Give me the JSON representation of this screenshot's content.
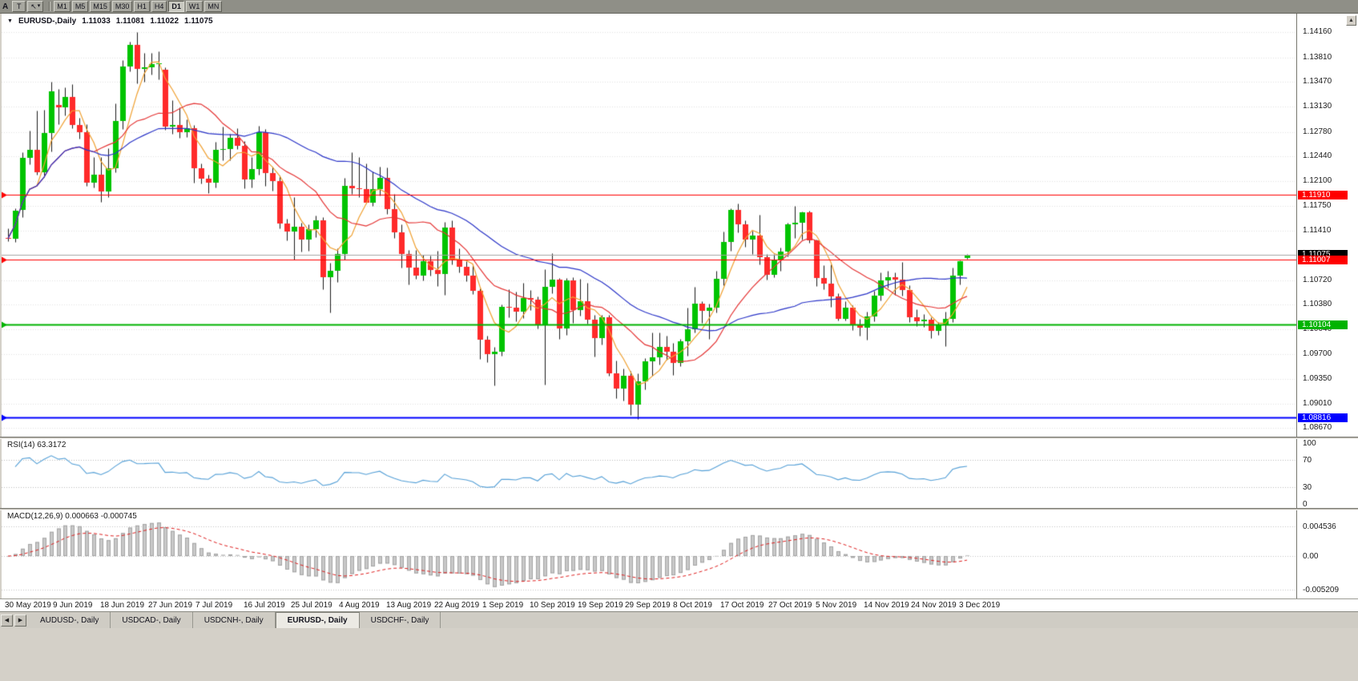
{
  "toolbar": {
    "left_label": "A",
    "t_button": "T",
    "timeframes": [
      {
        "label": "M1",
        "active": false
      },
      {
        "label": "M5",
        "active": false
      },
      {
        "label": "M15",
        "active": false
      },
      {
        "label": "M30",
        "active": false
      },
      {
        "label": "H1",
        "active": false
      },
      {
        "label": "H4",
        "active": false
      },
      {
        "label": "D1",
        "active": true
      },
      {
        "label": "W1",
        "active": false
      },
      {
        "label": "MN",
        "active": false
      }
    ]
  },
  "chart": {
    "header": {
      "collapse_icon": "▼",
      "symbol_title": "EURUSD-,Daily",
      "open": "1.11033",
      "high": "1.11081",
      "low": "1.11022",
      "close": "1.11075"
    },
    "price_axis": {
      "labels": [
        "1.14160",
        "1.13810",
        "1.13470",
        "1.13130",
        "1.12780",
        "1.12440",
        "1.12100",
        "1.11750",
        "1.11410",
        "1.10720",
        "1.10380",
        "1.10040",
        "1.09700",
        "1.09350",
        "1.09010",
        "1.08670"
      ]
    },
    "current_price": {
      "value": 1.11075,
      "label": "1.11075",
      "line_color": "#A6A6A6",
      "badge_bg": "#000000"
    },
    "levels": [
      {
        "price": 1.1191,
        "label": "1.11910",
        "color": "#FF0000",
        "width": 1
      },
      {
        "price": 1.11007,
        "label": "1.11007",
        "color": "#FF0000",
        "width": 1
      },
      {
        "price": 1.10104,
        "label": "1.10104",
        "color": "#00B300",
        "width": 2
      },
      {
        "price": 1.08816,
        "label": "1.08816",
        "color": "#0000FF",
        "width": 2
      }
    ],
    "date_axis": [
      "30 May 2019",
      "9 Jun 2019",
      "18 Jun 2019",
      "27 Jun 2019",
      "7 Jul 2019",
      "16 Jul 2019",
      "25 Jul 2019",
      "4 Aug 2019",
      "13 Aug 2019",
      "22 Aug 2019",
      "1 Sep 2019",
      "10 Sep 2019",
      "19 Sep 2019",
      "29 Sep 2019",
      "8 Oct 2019",
      "17 Oct 2019",
      "27 Oct 2019",
      "5 Nov 2019",
      "14 Nov 2019",
      "24 Nov 2019",
      "3 Dec 2019"
    ]
  },
  "rsi": {
    "label": "RSI(14) 63.3172",
    "axis_labels": [
      "100",
      "70",
      "30",
      "0"
    ],
    "levels": [
      70,
      30
    ],
    "color": "#55A0D7"
  },
  "macd": {
    "label": "MACD(12,26,9) 0.000663 -0.000745",
    "axis_labels": [
      "0.004536",
      "0.00",
      "-0.005209"
    ],
    "grid_values": [
      0.004536,
      0,
      -0.005209
    ],
    "hist_color": "#C8C8C8",
    "hist_outline": "#A4A4A4",
    "signal_color": "#E02020"
  },
  "tabs": {
    "items": [
      {
        "label": "AUDUSD-, Daily",
        "active": false
      },
      {
        "label": "USDCAD-, Daily",
        "active": false
      },
      {
        "label": "USDCNH-, Daily",
        "active": false
      },
      {
        "label": "EURUSD-, Daily",
        "active": true
      },
      {
        "label": "USDCHF-, Daily",
        "active": false
      }
    ]
  },
  "chart_data": {
    "type": "candlestick",
    "symbol": "EURUSD",
    "timeframe": "Daily",
    "last_ohlc": {
      "open": 1.11033,
      "high": 1.11081,
      "low": 1.11022,
      "close": 1.11075
    },
    "scale": {
      "price_max": 1.1442,
      "price_min": 1.0855
    },
    "up_color": "#00C400",
    "down_color": "#FF2A2A",
    "wick_color": "#1A1A1A",
    "moving_averages": [
      {
        "period": 5,
        "color": "#F0A030"
      },
      {
        "period": 13,
        "color": "#E53535"
      },
      {
        "period": 34,
        "color": "#2B35C8"
      }
    ],
    "rsi_period": 14,
    "macd_params": [
      12,
      26,
      9
    ],
    "candles": [
      [
        1.1131,
        1.1144,
        1.1126,
        1.113
      ],
      [
        1.113,
        1.1172,
        1.11255,
        1.1168
      ],
      [
        1.117,
        1.125,
        1.116,
        1.1242
      ],
      [
        1.1242,
        1.128,
        1.1233,
        1.1253
      ],
      [
        1.1253,
        1.1307,
        1.1219,
        1.1222
      ],
      [
        1.1222,
        1.1309,
        1.1215,
        1.1276
      ],
      [
        1.1276,
        1.1348,
        1.1251,
        1.1334
      ],
      [
        1.1315,
        1.1338,
        1.1289,
        1.1312
      ],
      [
        1.1312,
        1.134,
        1.1301,
        1.1326
      ],
      [
        1.1326,
        1.1344,
        1.1283,
        1.1288
      ],
      [
        1.1288,
        1.1297,
        1.1269,
        1.1277
      ],
      [
        1.1277,
        1.1289,
        1.1203,
        1.1207
      ],
      [
        1.1207,
        1.1243,
        1.1201,
        1.1218
      ],
      [
        1.1218,
        1.1243,
        1.1181,
        1.1195
      ],
      [
        1.1195,
        1.1255,
        1.1187,
        1.1227
      ],
      [
        1.1227,
        1.1317,
        1.1222,
        1.1293
      ],
      [
        1.1293,
        1.1378,
        1.1282,
        1.1369
      ],
      [
        1.1369,
        1.1403,
        1.1362,
        1.1399
      ],
      [
        1.1399,
        1.1416,
        1.1345,
        1.1365
      ],
      [
        1.1365,
        1.1387,
        1.1348,
        1.1367
      ],
      [
        1.1367,
        1.1388,
        1.1357,
        1.1372
      ],
      [
        1.1372,
        1.139,
        1.1351,
        1.1373
      ],
      [
        1.1364,
        1.1368,
        1.1281,
        1.1285
      ],
      [
        1.1285,
        1.1322,
        1.1275,
        1.1288
      ],
      [
        1.1288,
        1.1312,
        1.127,
        1.1278
      ],
      [
        1.1278,
        1.1295,
        1.1271,
        1.1283
      ],
      [
        1.1283,
        1.1287,
        1.1207,
        1.1227
      ],
      [
        1.1227,
        1.1234,
        1.1206,
        1.1213
      ],
      [
        1.1213,
        1.1218,
        1.1193,
        1.1207
      ],
      [
        1.1207,
        1.1264,
        1.1201,
        1.1253
      ],
      [
        1.1253,
        1.1285,
        1.1239,
        1.1254
      ],
      [
        1.1254,
        1.1275,
        1.1239,
        1.127
      ],
      [
        1.127,
        1.1283,
        1.1254,
        1.1259
      ],
      [
        1.1259,
        1.1265,
        1.12,
        1.1212
      ],
      [
        1.1212,
        1.1243,
        1.1201,
        1.1226
      ],
      [
        1.1226,
        1.1286,
        1.1219,
        1.1277
      ],
      [
        1.1277,
        1.1282,
        1.1203,
        1.1221
      ],
      [
        1.1221,
        1.123,
        1.1196,
        1.121
      ],
      [
        1.121,
        1.1217,
        1.1144,
        1.1151
      ],
      [
        1.1151,
        1.1157,
        1.1127,
        1.114
      ],
      [
        1.114,
        1.1187,
        1.1101,
        1.1146
      ],
      [
        1.1146,
        1.1152,
        1.1112,
        1.1128
      ],
      [
        1.1128,
        1.115,
        1.1113,
        1.1143
      ],
      [
        1.1143,
        1.1162,
        1.1132,
        1.1155
      ],
      [
        1.1155,
        1.116,
        1.106,
        1.1076
      ],
      [
        1.1076,
        1.1096,
        1.1027,
        1.1085
      ],
      [
        1.1085,
        1.1116,
        1.107,
        1.1108
      ],
      [
        1.1108,
        1.1214,
        1.1101,
        1.1203
      ],
      [
        1.1203,
        1.125,
        1.1192,
        1.12
      ],
      [
        1.12,
        1.1243,
        1.1187,
        1.1199
      ],
      [
        1.1199,
        1.1234,
        1.1179,
        1.118
      ],
      [
        1.118,
        1.1223,
        1.1175,
        1.1199
      ],
      [
        1.1199,
        1.123,
        1.119,
        1.1214
      ],
      [
        1.1214,
        1.1229,
        1.1164,
        1.1171
      ],
      [
        1.1171,
        1.1192,
        1.1131,
        1.1139
      ],
      [
        1.1139,
        1.115,
        1.109,
        1.1108
      ],
      [
        1.1108,
        1.1114,
        1.1066,
        1.109
      ],
      [
        1.109,
        1.1114,
        1.1074,
        1.1078
      ],
      [
        1.1078,
        1.1107,
        1.1072,
        1.1099
      ],
      [
        1.1099,
        1.1106,
        1.1079,
        1.1086
      ],
      [
        1.1086,
        1.1113,
        1.1064,
        1.1081
      ],
      [
        1.1081,
        1.1153,
        1.1052,
        1.1145
      ],
      [
        1.1145,
        1.1155,
        1.1094,
        1.1101
      ],
      [
        1.1101,
        1.1116,
        1.1083,
        1.1091
      ],
      [
        1.1091,
        1.1098,
        1.1071,
        1.1079
      ],
      [
        1.1079,
        1.1094,
        1.1053,
        1.1057
      ],
      [
        1.1057,
        1.1061,
        1.0963,
        1.0989
      ],
      [
        1.0989,
        1.0995,
        1.0958,
        1.0969
      ],
      [
        1.0969,
        1.0979,
        1.0926,
        1.0973
      ],
      [
        1.0973,
        1.1038,
        1.0967,
        1.1035
      ],
      [
        1.1035,
        1.106,
        1.1021,
        1.1034
      ],
      [
        1.1034,
        1.1056,
        1.1015,
        1.1028
      ],
      [
        1.1028,
        1.1068,
        1.102,
        1.1047
      ],
      [
        1.1047,
        1.1059,
        1.1031,
        1.1045
      ],
      [
        1.1045,
        1.1049,
        1.1005,
        1.1011
      ],
      [
        1.1011,
        1.1087,
        1.0927,
        1.1063
      ],
      [
        1.1063,
        1.111,
        1.1054,
        1.1073
      ],
      [
        1.1073,
        1.1075,
        1.0991,
        1.1005
      ],
      [
        1.1005,
        1.1075,
        1.0996,
        1.1072
      ],
      [
        1.1072,
        1.1076,
        1.1013,
        1.1031
      ],
      [
        1.1031,
        1.1074,
        1.1023,
        1.1043
      ],
      [
        1.1043,
        1.1068,
        1.1012,
        1.1017
      ],
      [
        1.1017,
        1.1024,
        1.0966,
        1.0992
      ],
      [
        1.0992,
        1.1024,
        1.0983,
        1.1021
      ],
      [
        1.1021,
        1.1024,
        1.094,
        1.0943
      ],
      [
        1.0943,
        1.0961,
        1.0908,
        1.0922
      ],
      [
        1.0922,
        1.095,
        1.0905,
        1.0939
      ],
      [
        1.0939,
        1.0946,
        1.0885,
        1.0899
      ],
      [
        1.0899,
        1.0943,
        1.0879,
        1.0932
      ],
      [
        1.0932,
        1.0964,
        1.0921,
        1.0959
      ],
      [
        1.0959,
        1.0999,
        1.094,
        1.0965
      ],
      [
        1.0965,
        1.0999,
        1.0955,
        1.0979
      ],
      [
        1.0979,
        1.0995,
        1.0962,
        1.0973
      ],
      [
        1.0973,
        1.0985,
        1.0941,
        1.0957
      ],
      [
        1.0957,
        1.0991,
        1.0953,
        1.0987
      ],
      [
        1.0987,
        1.1034,
        1.0967,
        1.1004
      ],
      [
        1.1004,
        1.1063,
        1.1,
        1.104
      ],
      [
        1.104,
        1.1043,
        1.1013,
        1.103
      ],
      [
        1.103,
        1.104,
        1.0991,
        1.1034
      ],
      [
        1.1034,
        1.1085,
        1.1027,
        1.1074
      ],
      [
        1.1074,
        1.114,
        1.1065,
        1.1125
      ],
      [
        1.1125,
        1.1172,
        1.1113,
        1.117
      ],
      [
        1.117,
        1.1179,
        1.1138,
        1.115
      ],
      [
        1.115,
        1.1155,
        1.1119,
        1.1128
      ],
      [
        1.1128,
        1.1141,
        1.1108,
        1.1134
      ],
      [
        1.1134,
        1.1163,
        1.1094,
        1.1104
      ],
      [
        1.1104,
        1.1108,
        1.1073,
        1.108
      ],
      [
        1.108,
        1.1108,
        1.1076,
        1.11
      ],
      [
        1.11,
        1.1117,
        1.1085,
        1.1112
      ],
      [
        1.1112,
        1.1152,
        1.1105,
        1.115
      ],
      [
        1.115,
        1.1175,
        1.1131,
        1.1152
      ],
      [
        1.1152,
        1.1167,
        1.1128,
        1.1166
      ],
      [
        1.1166,
        1.1168,
        1.1124,
        1.1127
      ],
      [
        1.1127,
        1.1129,
        1.1064,
        1.1075
      ],
      [
        1.1075,
        1.1093,
        1.106,
        1.1067
      ],
      [
        1.1067,
        1.1094,
        1.1035,
        1.105
      ],
      [
        1.105,
        1.1054,
        1.1016,
        1.1018
      ],
      [
        1.1018,
        1.1043,
        1.1016,
        1.1034
      ],
      [
        1.1034,
        1.1037,
        1.1003,
        1.1009
      ],
      [
        1.1009,
        1.1018,
        1.0995,
        1.1006
      ],
      [
        1.1006,
        1.1028,
        1.0989,
        1.1022
      ],
      [
        1.1022,
        1.1057,
        1.1015,
        1.1051
      ],
      [
        1.1051,
        1.1083,
        1.1044,
        1.1072
      ],
      [
        1.1072,
        1.1085,
        1.1062,
        1.1076
      ],
      [
        1.1076,
        1.1083,
        1.1052,
        1.1073
      ],
      [
        1.1073,
        1.1097,
        1.1051,
        1.1058
      ],
      [
        1.1058,
        1.1065,
        1.1014,
        1.1021
      ],
      [
        1.1021,
        1.1032,
        1.1008,
        1.1015
      ],
      [
        1.1015,
        1.1025,
        1.1007,
        1.1017
      ],
      [
        1.1017,
        1.1021,
        1.0992,
        1.1002
      ],
      [
        1.1002,
        1.1014,
        1.0996,
        1.1009
      ],
      [
        1.1009,
        1.1028,
        1.0981,
        1.1018
      ],
      [
        1.1018,
        1.109,
        1.1014,
        1.1079
      ],
      [
        1.1079,
        1.11,
        1.1066,
        1.1099
      ],
      [
        1.11033,
        1.11081,
        1.11022,
        1.11075
      ]
    ]
  }
}
